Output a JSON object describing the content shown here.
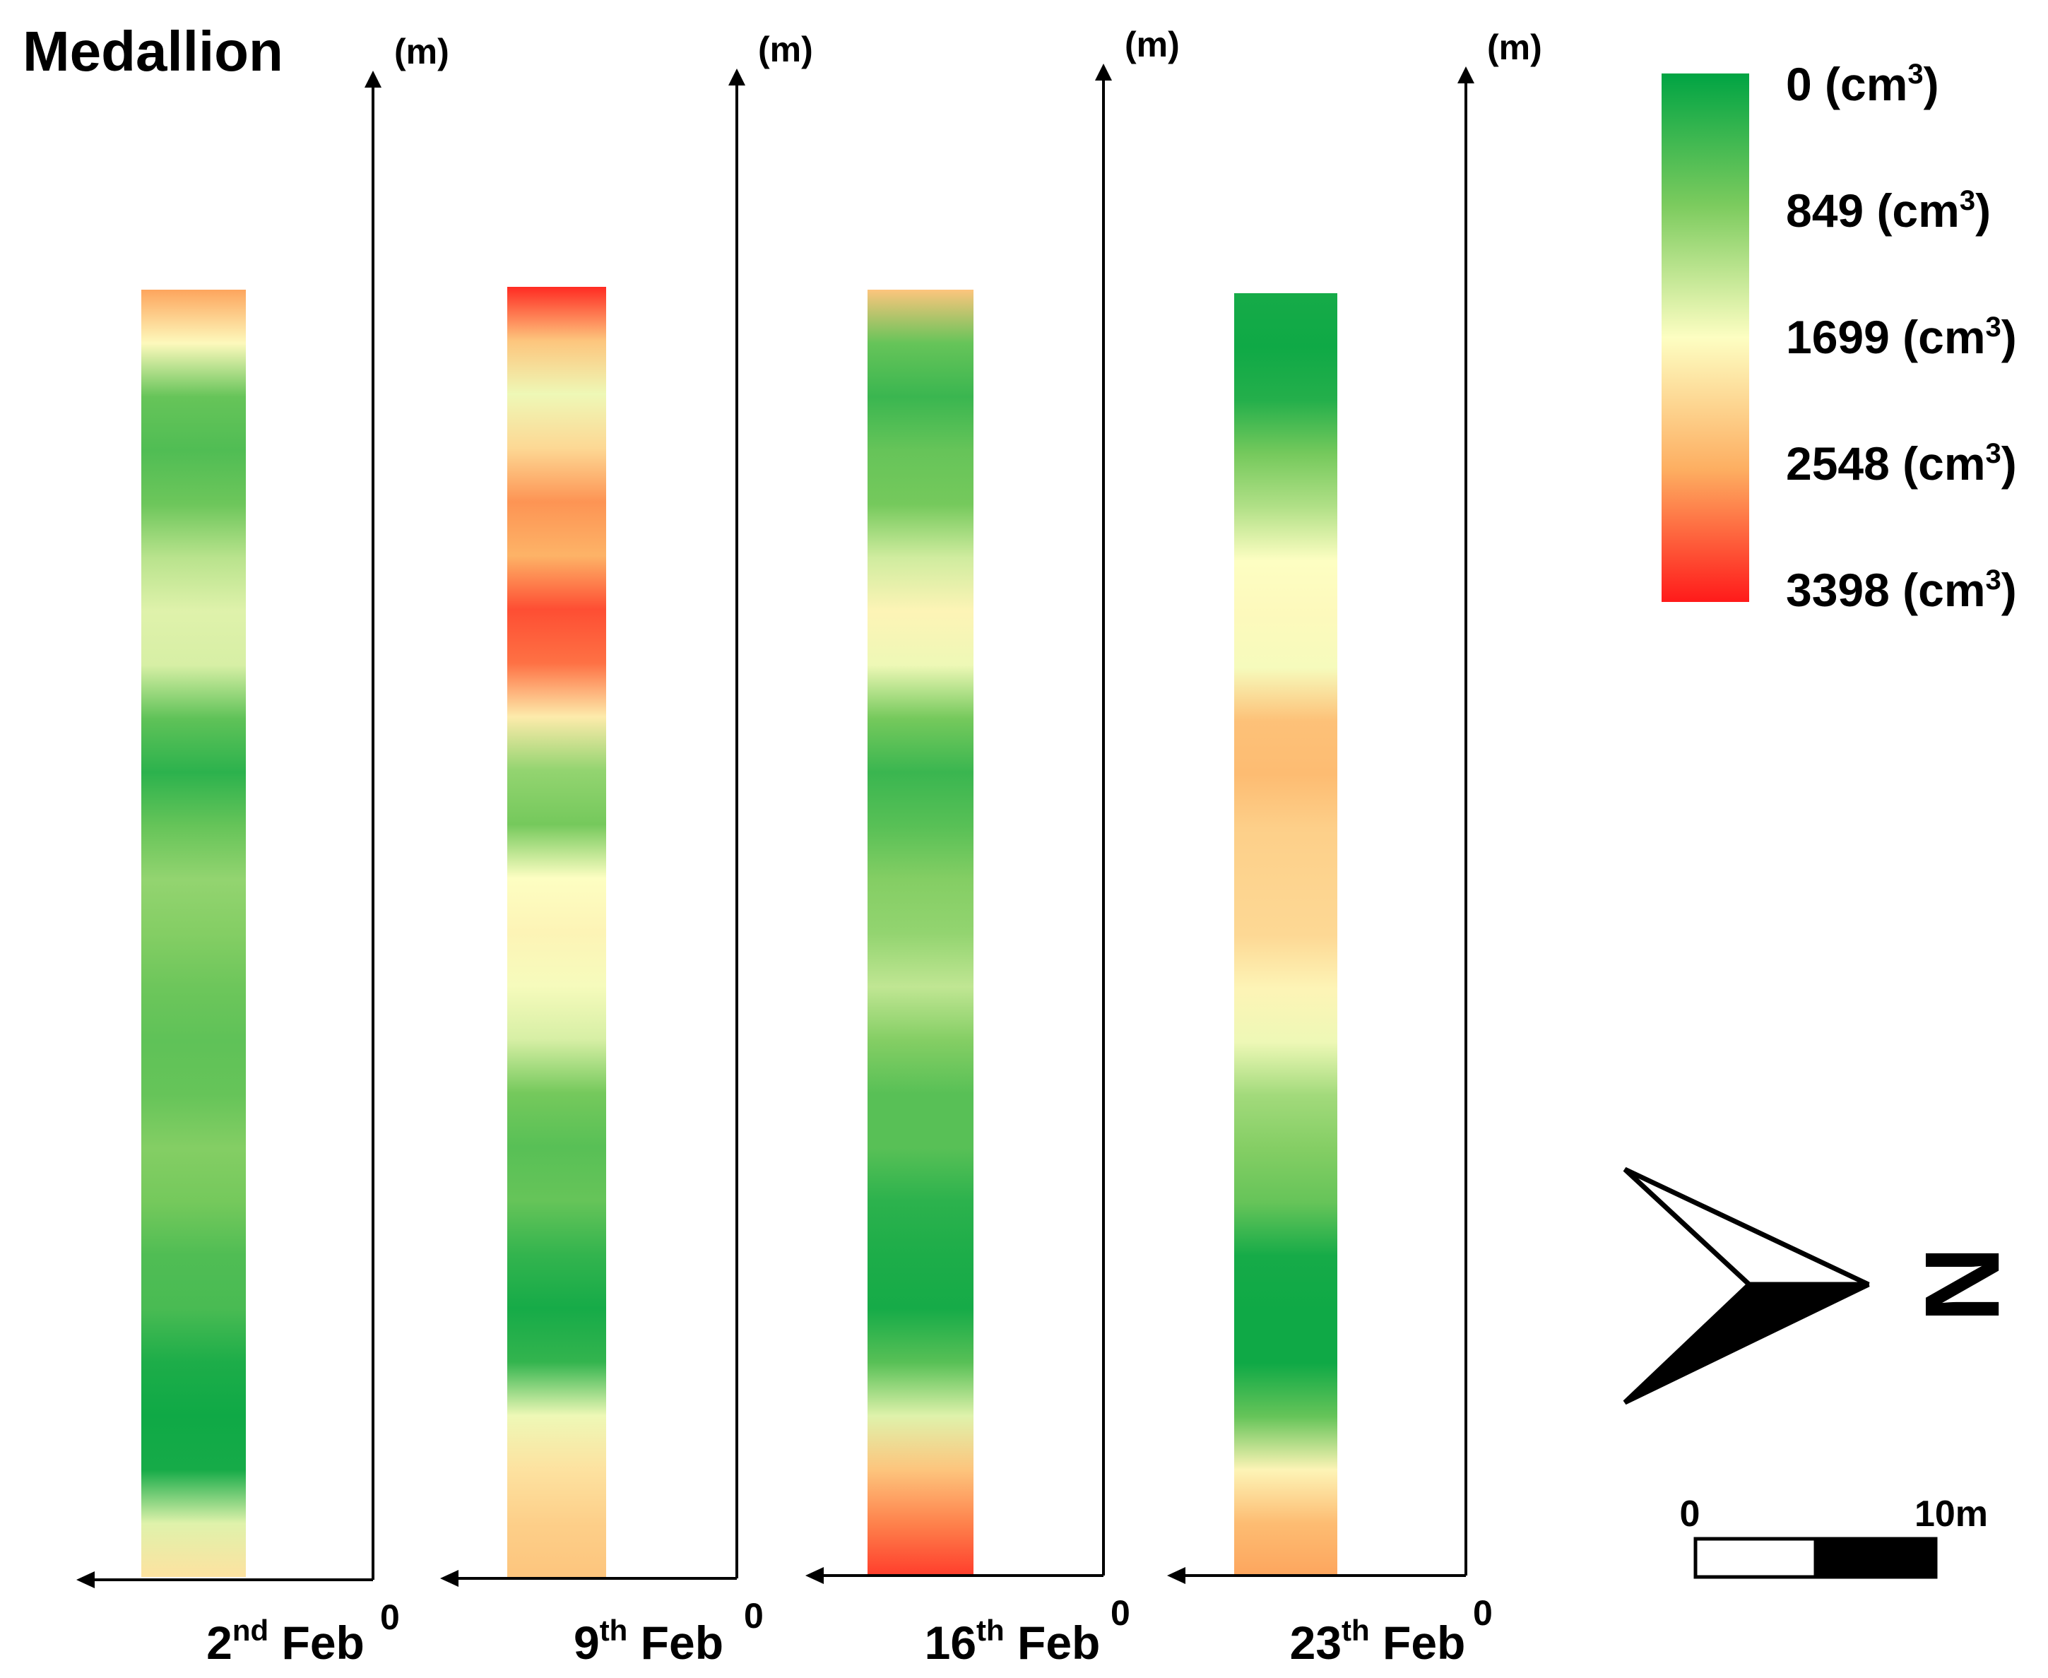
{
  "chart_data": {
    "type": "heatmap",
    "title": "Medallion",
    "axis_unit": "(m)",
    "origin_label": "0",
    "colorbar": {
      "ticks": [
        {
          "value": 0,
          "label": "0",
          "unit": "(cm",
          "sup": "3",
          "close": ")"
        },
        {
          "value": 849,
          "label": "849",
          "unit": "(cm",
          "sup": "3",
          "close": ")"
        },
        {
          "value": 1699,
          "label": "1699",
          "unit": "(cm",
          "sup": "3",
          "close": ")"
        },
        {
          "value": 2548,
          "label": "2548",
          "unit": "(cm",
          "sup": "3",
          "close": ")"
        },
        {
          "value": 3398,
          "label": "3398",
          "unit": "(cm",
          "sup": "3",
          "close": ")"
        }
      ],
      "colors": [
        "#00a443",
        "#7ccb5e",
        "#fdfec2",
        "#fdae61",
        "#ff1a1a"
      ],
      "vmin": 0,
      "vmax": 3398
    },
    "panels": [
      {
        "date_num": "2",
        "date_sup": "nd",
        "date_month": " Feb",
        "profile": [
          2600,
          1750,
          700,
          550,
          750,
          1250,
          1500,
          1450,
          650,
          300,
          700,
          1000,
          900,
          750,
          650,
          700,
          900,
          800,
          550,
          500,
          200,
          100,
          150,
          1500,
          2000
        ]
      },
      {
        "date_num": "9",
        "date_sup": "th",
        "date_month": " Feb",
        "profile": [
          3300,
          2300,
          1600,
          2100,
          2700,
          2500,
          3100,
          2900,
          1900,
          1000,
          800,
          1700,
          1800,
          1650,
          1450,
          800,
          600,
          700,
          350,
          150,
          350,
          1600,
          2000,
          2200,
          2300
        ]
      },
      {
        "date_num": "16",
        "date_sup": "th",
        "date_month": " Feb",
        "profile": [
          2300,
          700,
          400,
          700,
          800,
          1400,
          1800,
          1600,
          800,
          400,
          600,
          900,
          1000,
          1300,
          900,
          600,
          600,
          300,
          200,
          150,
          600,
          1500,
          2300,
          2800,
          3200
        ]
      },
      {
        "date_num": "23",
        "date_sup": "th",
        "date_month": " Feb",
        "profile": [
          150,
          100,
          250,
          800,
          1200,
          1700,
          1750,
          1650,
          2350,
          2400,
          2200,
          2150,
          2100,
          1800,
          1600,
          1100,
          900,
          700,
          150,
          100,
          100,
          700,
          1800,
          2400,
          2600
        ]
      }
    ]
  },
  "scalebar": {
    "min_label": "0",
    "max_label": "10m"
  },
  "north_label": "N"
}
